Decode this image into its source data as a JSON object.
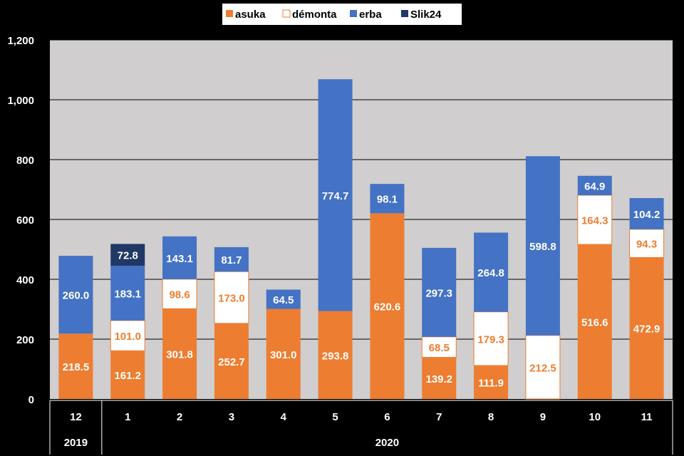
{
  "chart_data": {
    "type": "bar",
    "stacked": true,
    "categories": [
      "12",
      "1",
      "2",
      "3",
      "4",
      "5",
      "6",
      "7",
      "8",
      "9",
      "10",
      "11"
    ],
    "year_groups": [
      {
        "label": "2019",
        "span": 1
      },
      {
        "label": "2020",
        "span": 11
      }
    ],
    "series": [
      {
        "name": "asuka",
        "color": "#ED7D31",
        "values": [
          218.5,
          161.2,
          301.8,
          252.7,
          301.0,
          293.8,
          620.6,
          139.2,
          111.9,
          null,
          516.6,
          472.9
        ],
        "labels": [
          "218.5",
          "161.2",
          "301.8",
          "252.7",
          "301.0",
          "293.8",
          "620.6",
          "139.2",
          "111.9",
          "",
          "516.6",
          "472.9"
        ]
      },
      {
        "name": "démonta",
        "color": "#FFFFFF",
        "values": [
          null,
          101.0,
          98.6,
          173.0,
          null,
          null,
          null,
          68.5,
          179.3,
          212.5,
          164.3,
          94.3
        ],
        "labels": [
          "",
          "101.0",
          "98.6",
          "173.0",
          "",
          "",
          "",
          "68.5",
          "179.3",
          "212.5",
          "164.3",
          "94.3"
        ]
      },
      {
        "name": "erba",
        "color": "#4472C4",
        "values": [
          260.0,
          183.1,
          143.1,
          81.7,
          64.5,
          774.7,
          98.1,
          297.3,
          264.8,
          598.8,
          64.9,
          104.2
        ],
        "labels": [
          "260.0",
          "183.1",
          "143.1",
          "81.7",
          "64.5",
          "774.7",
          "98.1",
          "297.3",
          "264.8",
          "598.8",
          "64.9",
          "104.2"
        ]
      },
      {
        "name": "Slik24",
        "color": "#203864",
        "values": [
          null,
          72.8,
          null,
          null,
          null,
          null,
          null,
          null,
          null,
          null,
          null,
          null
        ],
        "labels": [
          "",
          "72.8",
          "",
          "",
          "",
          "",
          "",
          "",
          "",
          "",
          "",
          ""
        ]
      }
    ],
    "yaxis": {
      "ticks": [
        0,
        200,
        400,
        600,
        800,
        1000,
        1200
      ],
      "tick_labels": [
        "0",
        "200",
        "400",
        "600",
        "800",
        "1,000",
        "1,200"
      ],
      "ylim": [
        0,
        1200
      ]
    },
    "grid": true,
    "legend": "top"
  }
}
